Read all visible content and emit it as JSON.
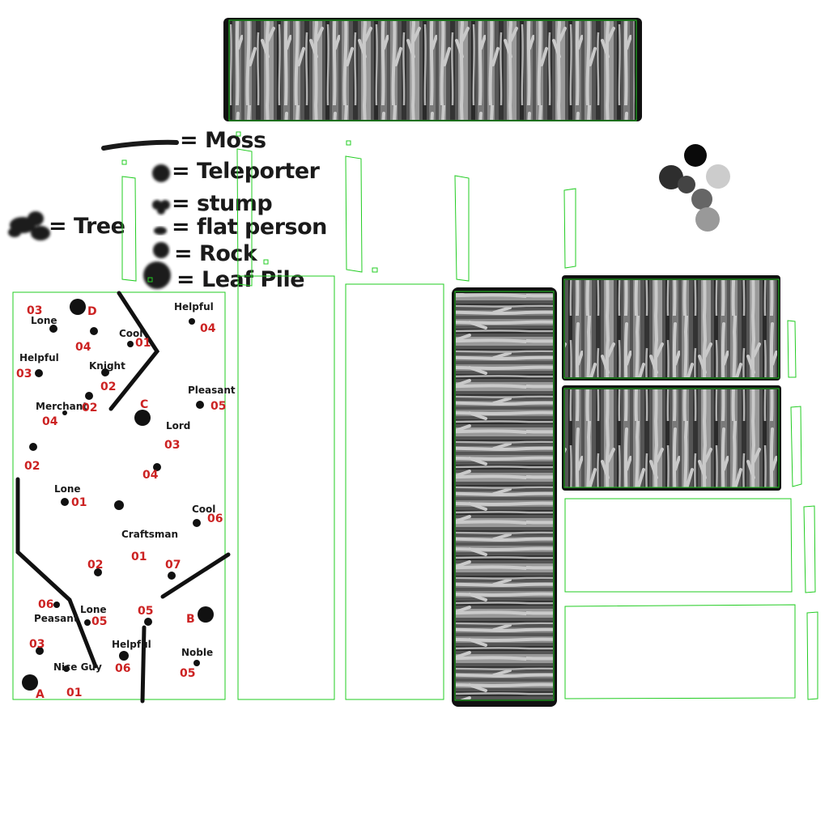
{
  "legend": {
    "moss": "= Moss",
    "teleporter": "= Teleporter",
    "stump": "= stump",
    "flat_person": "= flat person",
    "rock": "= Rock",
    "leaf_pile": "= Leaf Pile",
    "tree": "= Tree"
  },
  "swatches": [
    "#0a0a0a",
    "#2e2e2e",
    "#444444",
    "#cccccc",
    "#666666",
    "#999999"
  ],
  "map": {
    "teleporters": {
      "a": "A",
      "b": "B",
      "c": "C",
      "d": "D"
    },
    "people": [
      {
        "name": "Lone",
        "num": "03"
      },
      {
        "name": "Helpful",
        "num": "04"
      },
      {
        "name": "Cool",
        "num": "01"
      },
      {
        "name": "Helpful",
        "num": "03"
      },
      {
        "name": "Knight",
        "num": "02"
      },
      {
        "name": "Pleasant",
        "num": "05"
      },
      {
        "name": "Merchant",
        "num": "04"
      },
      {
        "name": "Lord",
        "num": "03"
      },
      {
        "name": "Lone",
        "num": "01"
      },
      {
        "name": "Cool",
        "num": "06"
      },
      {
        "name": "Craftsman",
        "num": "01"
      },
      {
        "name": "Peasant",
        "num": "06"
      },
      {
        "name": "Lone",
        "num": "05"
      },
      {
        "name": "Helpful",
        "num": "06"
      },
      {
        "name": "Nice Guy",
        "num": "01"
      },
      {
        "name": "Noble",
        "num": "05"
      }
    ],
    "numbers": {
      "n04a": "04",
      "n02a": "02",
      "n02b": "02",
      "n04b": "04",
      "n02c": "02",
      "n07": "07",
      "n05": "05",
      "n03": "03"
    }
  }
}
